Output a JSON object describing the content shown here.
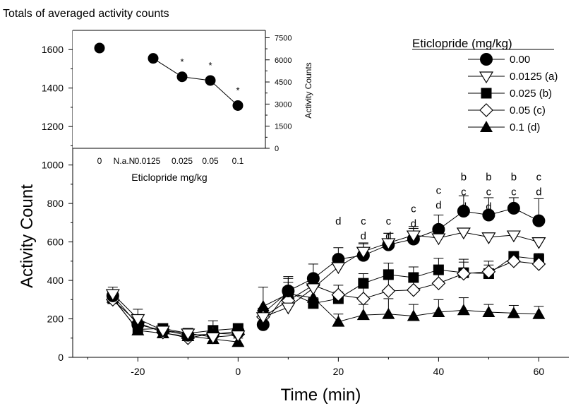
{
  "chart_data": [
    {
      "type": "line",
      "xlabel": "Time (min)",
      "ylabel": "Activity Count",
      "xlim": [
        -33,
        66
      ],
      "ylim": [
        0,
        1700
      ],
      "x_ticks": [
        -20,
        0,
        20,
        40,
        60
      ],
      "y_ticks": [
        0,
        200,
        400,
        600,
        800,
        1000,
        1200,
        1400,
        1600
      ],
      "x_tick_labels": [
        "-20",
        "0",
        "20",
        "40",
        "60"
      ],
      "y_tick_labels": [
        "0",
        "200",
        "400",
        "600",
        "800",
        "1000",
        "1200",
        "1400",
        "1600"
      ],
      "legend": {
        "title": "Eticlopride (mg/kg)",
        "placement": "top-right",
        "entries": [
          "0.00",
          "0.0125 (a)",
          "0.025 (b)",
          "0.05 (c)",
          "0.1 (d)"
        ]
      },
      "series": [
        {
          "name": "0.00",
          "marker": "filled-circle",
          "x": [
            -25,
            -20,
            -15,
            -10,
            -5,
            0,
            5,
            10,
            15,
            20,
            25,
            30,
            35,
            40,
            45,
            50,
            55,
            60
          ],
          "y": [
            320,
            170,
            140,
            115,
            120,
            135,
            170,
            345,
            410,
            510,
            530,
            585,
            615,
            665,
            760,
            740,
            775,
            710
          ],
          "err": [
            30,
            25,
            20,
            20,
            20,
            25,
            30,
            65,
            75,
            60,
            60,
            60,
            55,
            75,
            80,
            90,
            55,
            115
          ]
        },
        {
          "name": "0.0125 (a)",
          "marker": "open-triangle-down",
          "x": [
            -25,
            -20,
            -15,
            -10,
            -5,
            0,
            5,
            10,
            15,
            20,
            25,
            30,
            35,
            40,
            45,
            50,
            55,
            60
          ],
          "y": [
            330,
            200,
            140,
            125,
            105,
            115,
            210,
            260,
            360,
            470,
            550,
            595,
            635,
            620,
            650,
            625,
            635,
            600
          ],
          "err": [
            35,
            50,
            20,
            15,
            30,
            30,
            35,
            80,
            40,
            50,
            45,
            50,
            45,
            50,
            20,
            15,
            15,
            15
          ]
        },
        {
          "name": "0.025 (b)",
          "marker": "filled-square",
          "x": [
            -25,
            -20,
            -15,
            -10,
            -5,
            0,
            5,
            10,
            15,
            20,
            25,
            30,
            35,
            40,
            45,
            50,
            55,
            60
          ],
          "y": [
            305,
            145,
            150,
            125,
            140,
            150,
            230,
            340,
            280,
            305,
            385,
            430,
            415,
            455,
            440,
            435,
            525,
            510
          ],
          "err": [
            40,
            25,
            15,
            15,
            50,
            25,
            25,
            50,
            30,
            35,
            50,
            60,
            55,
            60,
            70,
            45,
            25,
            30
          ]
        },
        {
          "name": "0.05 (c)",
          "marker": "open-diamond",
          "x": [
            -25,
            -20,
            -15,
            -10,
            -5,
            0,
            5,
            10,
            15,
            20,
            25,
            30,
            35,
            40,
            45,
            50,
            55,
            60
          ],
          "y": [
            300,
            180,
            130,
            100,
            125,
            120,
            210,
            295,
            375,
            325,
            305,
            345,
            350,
            385,
            435,
            445,
            500,
            485
          ],
          "err": [
            30,
            30,
            15,
            15,
            30,
            30,
            25,
            45,
            40,
            50,
            55,
            60,
            55,
            50,
            60,
            55,
            50,
            20
          ]
        },
        {
          "name": "0.1 (d)",
          "marker": "filled-triangle-up",
          "x": [
            -25,
            -20,
            -15,
            -10,
            -5,
            0,
            5,
            10,
            15,
            20,
            25,
            30,
            35,
            40,
            45,
            50,
            55,
            60
          ],
          "y": [
            310,
            140,
            125,
            110,
            95,
            80,
            265,
            330,
            310,
            185,
            220,
            225,
            215,
            235,
            245,
            235,
            230,
            225
          ],
          "err": [
            30,
            20,
            15,
            15,
            20,
            20,
            100,
            90,
            80,
            40,
            55,
            80,
            60,
            65,
            65,
            40,
            40,
            40
          ]
        }
      ],
      "annotations": [
        {
          "x": 20,
          "y": 690,
          "lines": [
            "d"
          ]
        },
        {
          "x": 25,
          "y": 690,
          "lines": [
            "c",
            "d"
          ]
        },
        {
          "x": 30,
          "y": 690,
          "lines": [
            "c",
            "d"
          ]
        },
        {
          "x": 35,
          "y": 755,
          "lines": [
            "c",
            "d"
          ]
        },
        {
          "x": 40,
          "y": 850,
          "lines": [
            "c",
            "d"
          ]
        },
        {
          "x": 45,
          "y": 920,
          "lines": [
            "b",
            "c",
            "d"
          ]
        },
        {
          "x": 50,
          "y": 920,
          "lines": [
            "b",
            "c",
            "d"
          ]
        },
        {
          "x": 55,
          "y": 920,
          "lines": [
            "b",
            "c",
            "d"
          ]
        },
        {
          "x": 60,
          "y": 920,
          "lines": [
            "c",
            "d"
          ]
        }
      ]
    },
    {
      "type": "line",
      "title": "Totals of averaged activity counts",
      "xlabel": "Eticlopride mg/kg",
      "ylabel": "Activity Counts",
      "categories": [
        "0",
        "N.a.N",
        "0.0125",
        "0.025",
        "0.05",
        "0.1"
      ],
      "ylim": [
        0,
        8000
      ],
      "y_ticks": [
        0,
        1500,
        3000,
        4500,
        6000,
        7500
      ],
      "y_tick_labels": [
        "0",
        "1500",
        "3000",
        "4500",
        "6000",
        "7500"
      ],
      "series": [
        {
          "name": "",
          "values": [
            6800,
            null,
            6100,
            4850,
            4600,
            2900
          ],
          "significance": [
            "",
            "",
            "",
            "*",
            "*",
            "*"
          ]
        }
      ]
    }
  ]
}
